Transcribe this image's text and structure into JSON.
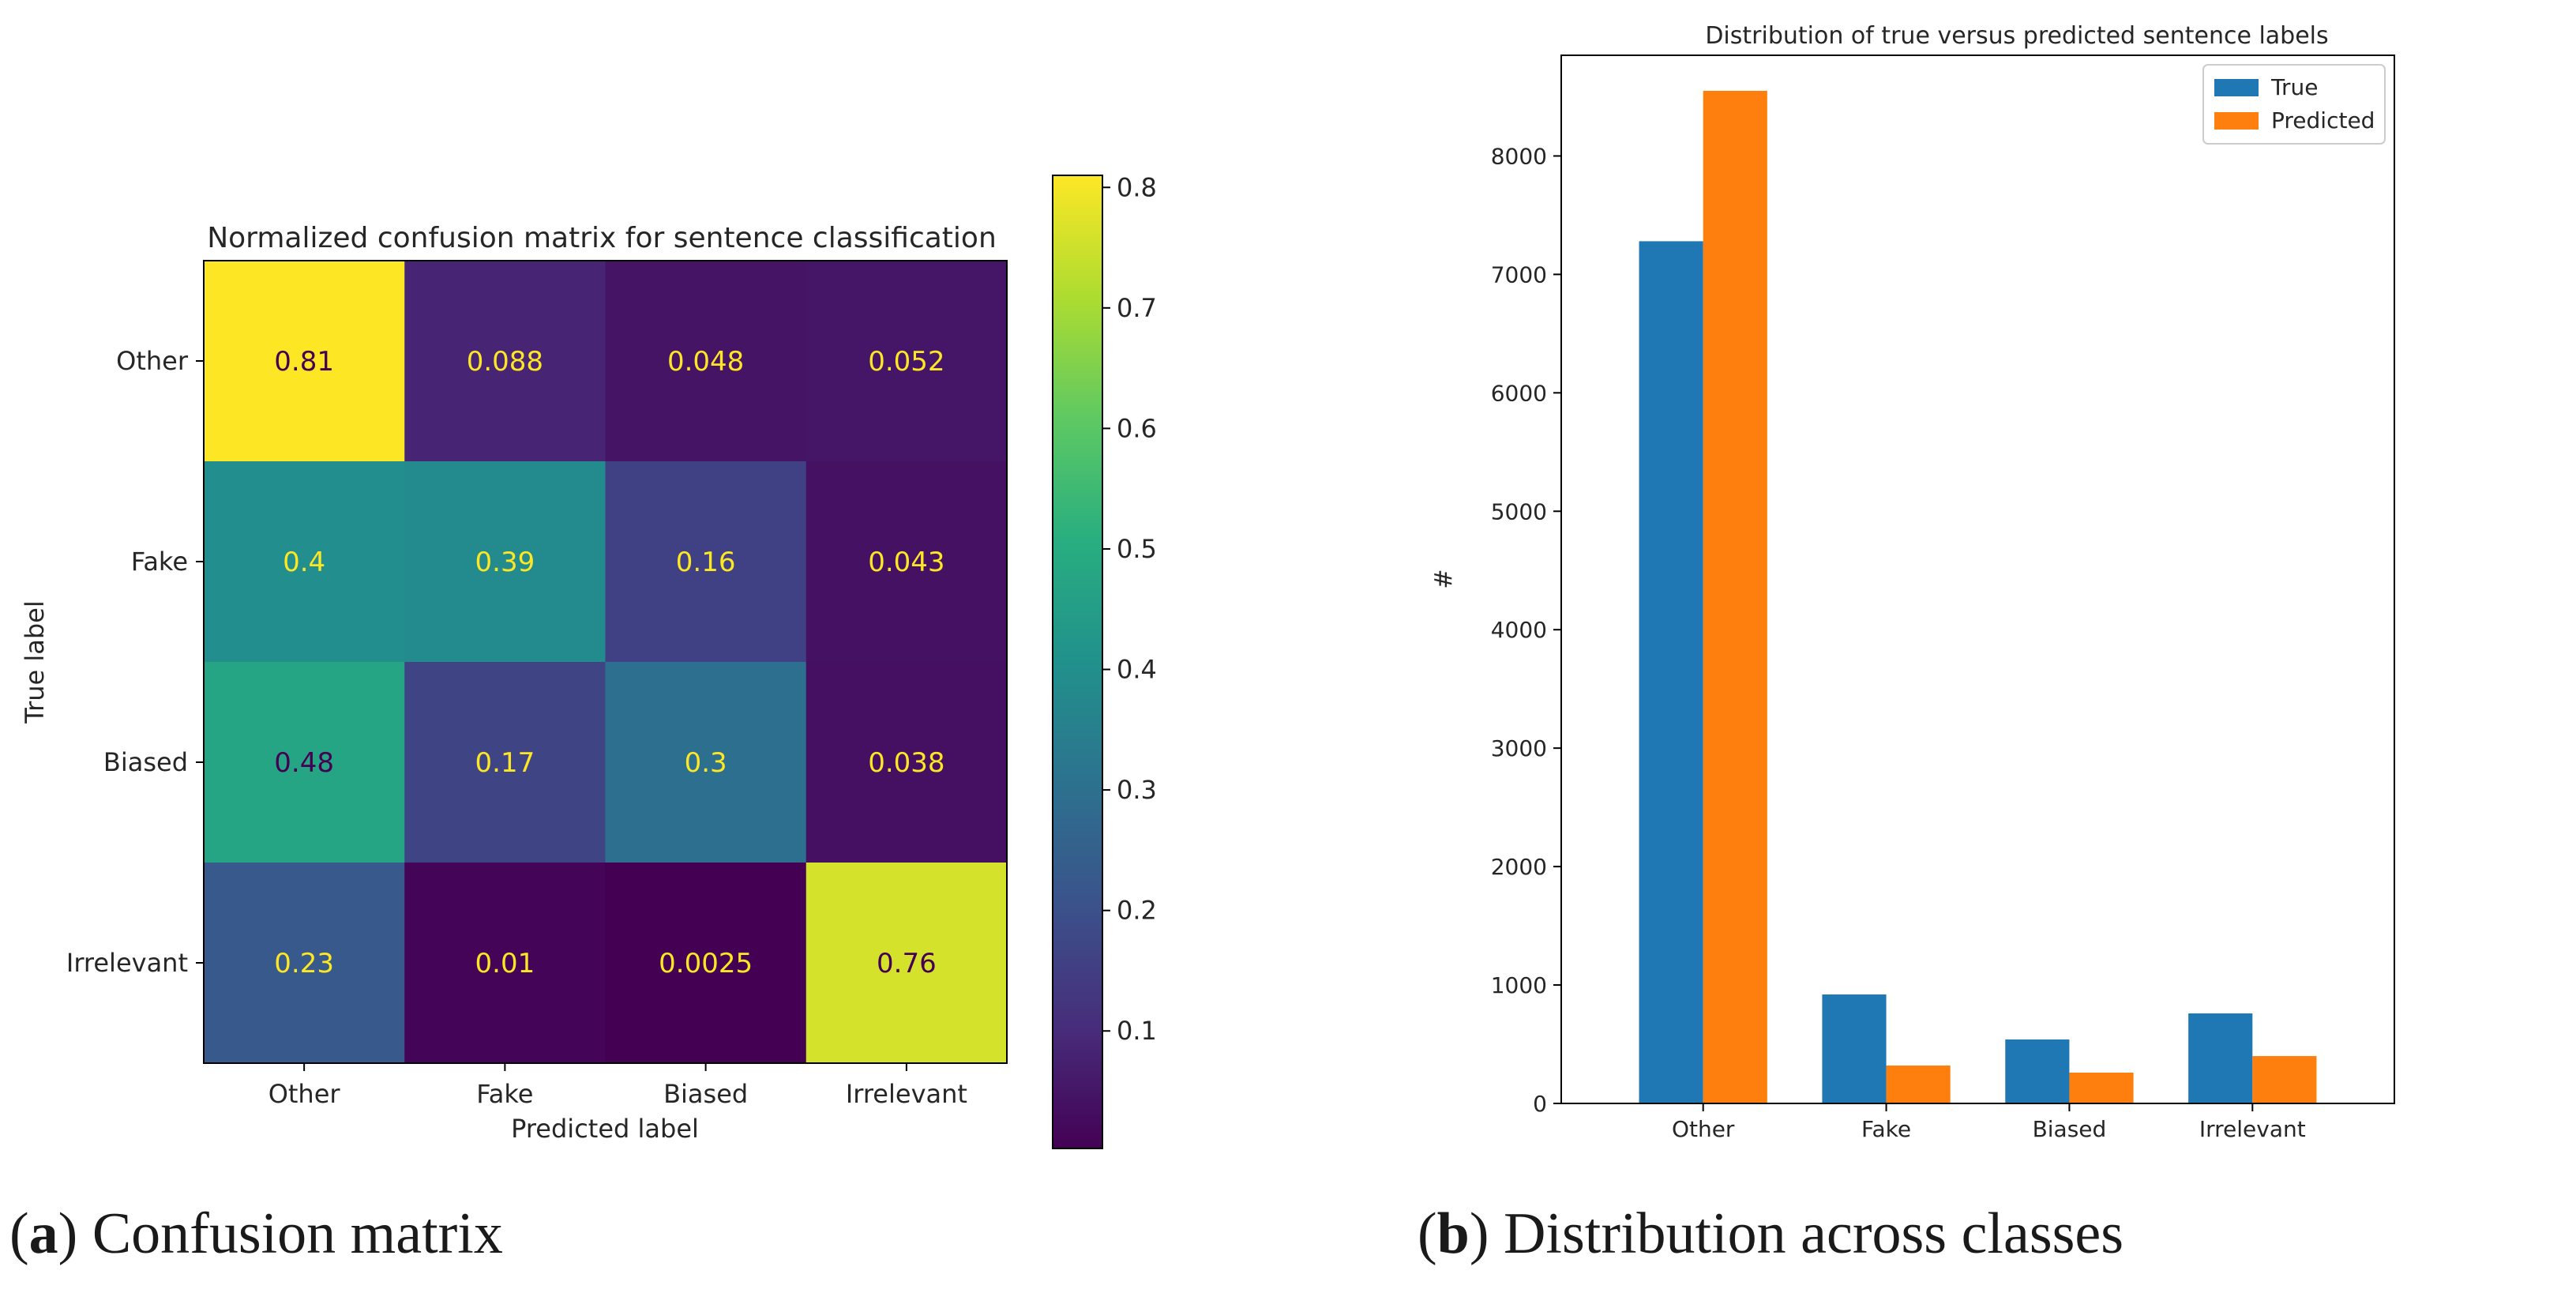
{
  "chart_data": [
    {
      "type": "heatmap",
      "title": "Normalized confusion matrix for sentence classification",
      "xlabel": "Predicted label",
      "ylabel": "True label",
      "x_categories": [
        "Other",
        "Fake",
        "Biased",
        "Irrelevant"
      ],
      "y_categories": [
        "Other",
        "Fake",
        "Biased",
        "Irrelevant"
      ],
      "values": [
        [
          0.81,
          0.088,
          0.048,
          0.052
        ],
        [
          0.4,
          0.39,
          0.16,
          0.043
        ],
        [
          0.48,
          0.17,
          0.3,
          0.038
        ],
        [
          0.23,
          0.01,
          0.0025,
          0.76
        ]
      ],
      "cell_labels": [
        [
          "0.81",
          "0.088",
          "0.048",
          "0.052"
        ],
        [
          "0.4",
          "0.39",
          "0.16",
          "0.043"
        ],
        [
          "0.48",
          "0.17",
          "0.3",
          "0.038"
        ],
        [
          "0.23",
          "0.01",
          "0.0025",
          "0.76"
        ]
      ],
      "colormap": "viridis",
      "colorbar": {
        "min": 0.0025,
        "max": 0.81,
        "ticks": [
          0.1,
          0.2,
          0.3,
          0.4,
          0.5,
          0.6,
          0.7,
          0.8
        ],
        "tick_labels": [
          "0.1",
          "0.2",
          "0.3",
          "0.4",
          "0.5",
          "0.6",
          "0.7",
          "0.8"
        ]
      }
    },
    {
      "type": "bar",
      "title": "Distribution of true versus predicted sentence labels",
      "xlabel": "",
      "ylabel": "#",
      "categories": [
        "Other",
        "Fake",
        "Biased",
        "Irrelevant"
      ],
      "series": [
        {
          "name": "True",
          "color": "#1f77b4",
          "values": [
            7280,
            920,
            540,
            760
          ]
        },
        {
          "name": "Predicted",
          "color": "#ff7f0e",
          "values": [
            8550,
            320,
            260,
            400
          ]
        }
      ],
      "ylim": [
        0,
        8850
      ],
      "yticks": [
        0,
        1000,
        2000,
        3000,
        4000,
        5000,
        6000,
        7000,
        8000
      ],
      "ytick_labels": [
        "0",
        "1000",
        "2000",
        "3000",
        "4000",
        "5000",
        "6000",
        "7000",
        "8000"
      ],
      "legend": "top-right"
    }
  ],
  "captions": {
    "a": {
      "label": "a",
      "text": "Confusion matrix"
    },
    "b": {
      "label": "b",
      "text": "Distribution across classes"
    }
  }
}
